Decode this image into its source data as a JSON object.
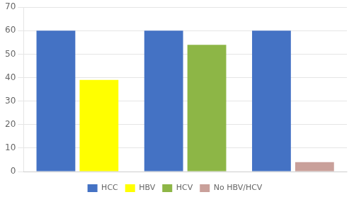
{
  "chart_data": {
    "type": "bar",
    "categories": [
      null,
      null,
      null
    ],
    "series": [
      {
        "name": "HCC",
        "color": "#4472c4",
        "values": [
          60,
          60,
          60
        ]
      },
      {
        "name": "HBV",
        "color": "#ffff00",
        "values": [
          39,
          null,
          null
        ]
      },
      {
        "name": "HCV",
        "color": "#8db646",
        "values": [
          null,
          54,
          null
        ]
      },
      {
        "name": "No HBV/HCV",
        "color": "#c9a09a",
        "values": [
          null,
          null,
          4
        ]
      }
    ],
    "ylim": [
      0,
      70
    ],
    "yticks": [
      0,
      10,
      20,
      30,
      40,
      50,
      60,
      70
    ],
    "grid": true,
    "legend": "bottom",
    "tick_labels": "y"
  }
}
